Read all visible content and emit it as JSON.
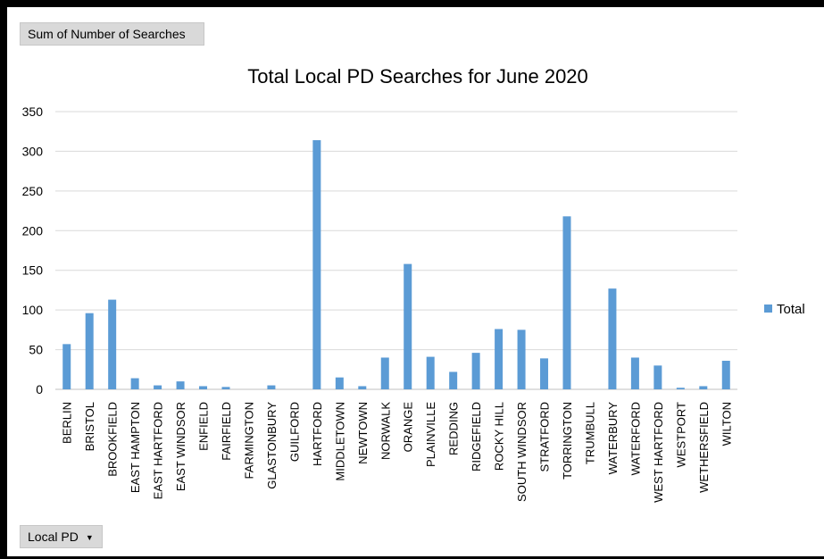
{
  "pivot": {
    "value_field_label": "Sum of Number of Searches",
    "axis_field_label": "Local PD",
    "axis_field_icon": "dropdown-arrow-icon"
  },
  "chart_data": {
    "type": "bar",
    "title": "Total Local PD Searches for June 2020",
    "xlabel": "",
    "ylabel": "",
    "ylim": [
      0,
      350
    ],
    "yticks": [
      0,
      50,
      100,
      150,
      200,
      250,
      300,
      350
    ],
    "grid": true,
    "legend_position": "right",
    "bar_color": "#5b9bd5",
    "categories": [
      "BERLIN",
      "BRISTOL",
      "BROOKFIELD",
      "EAST HAMPTON",
      "EAST HARTFORD",
      "EAST WINDSOR",
      "ENFIELD",
      "FAIRFIELD",
      "FARMINGTON",
      "GLASTONBURY",
      "GUILFORD",
      "HARTFORD",
      "MIDDLETOWN",
      "NEWTOWN",
      "NORWALK",
      "ORANGE",
      "PLAINVILLE",
      "REDDING",
      "RIDGEFIELD",
      "ROCKY HILL",
      "SOUTH WINDSOR",
      "STRATFORD",
      "TORRINGTON",
      "TRUMBULL",
      "WATERBURY",
      "WATERFORD",
      "WEST HARTFORD",
      "WESTPORT",
      "WETHERSFIELD",
      "WILTON"
    ],
    "series": [
      {
        "name": "Total",
        "values": [
          57,
          96,
          113,
          14,
          5,
          10,
          4,
          3,
          0,
          5,
          0,
          314,
          15,
          4,
          40,
          158,
          41,
          22,
          46,
          76,
          75,
          39,
          218,
          0,
          127,
          40,
          30,
          2,
          4,
          36
        ]
      }
    ]
  }
}
